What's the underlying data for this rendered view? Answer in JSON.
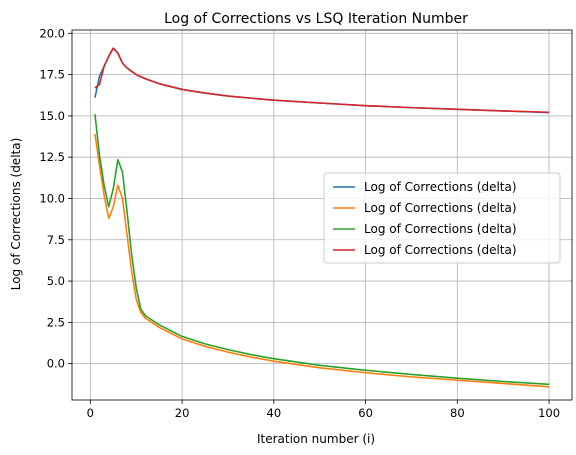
{
  "chart_data": {
    "type": "line",
    "title": "Log of Corrections vs LSQ Iteration Number",
    "xlabel": "Iteration number (i)",
    "ylabel": "Log of Corrections (delta)",
    "xlim": [
      -4,
      105
    ],
    "ylim": [
      -2.2,
      20.2
    ],
    "xticks": [
      0,
      20,
      40,
      60,
      80,
      100
    ],
    "yticks": [
      0.0,
      2.5,
      5.0,
      7.5,
      10.0,
      12.5,
      15.0,
      17.5,
      20.0
    ],
    "ytick_labels": [
      "0.0",
      "2.5",
      "5.0",
      "7.5",
      "10.0",
      "12.5",
      "15.0",
      "17.5",
      "20.0"
    ],
    "grid": true,
    "legend_position": "center-right",
    "series": [
      {
        "name": "Log of Corrections (delta)",
        "color": "#1f77b4",
        "points": [
          [
            1,
            16.1
          ],
          [
            2,
            17.4
          ],
          [
            3,
            18.0
          ],
          [
            4,
            18.6
          ],
          [
            5,
            19.1
          ],
          [
            6,
            18.8
          ],
          [
            7,
            18.2
          ],
          [
            8,
            17.9
          ],
          [
            9,
            17.7
          ],
          [
            10,
            17.5
          ],
          [
            12,
            17.25
          ],
          [
            15,
            16.95
          ],
          [
            20,
            16.6
          ],
          [
            25,
            16.38
          ],
          [
            30,
            16.2
          ],
          [
            40,
            15.95
          ],
          [
            50,
            15.78
          ],
          [
            60,
            15.62
          ],
          [
            70,
            15.5
          ],
          [
            80,
            15.4
          ],
          [
            90,
            15.3
          ],
          [
            100,
            15.2
          ]
        ]
      },
      {
        "name": "Log of Corrections (delta)",
        "color": "#ff7f0e",
        "points": [
          [
            1,
            13.9
          ],
          [
            2,
            12.0
          ],
          [
            3,
            10.2
          ],
          [
            4,
            8.8
          ],
          [
            5,
            9.5
          ],
          [
            6,
            10.8
          ],
          [
            7,
            10.0
          ],
          [
            8,
            7.8
          ],
          [
            9,
            5.6
          ],
          [
            10,
            3.9
          ],
          [
            11,
            3.1
          ],
          [
            12,
            2.75
          ],
          [
            15,
            2.2
          ],
          [
            20,
            1.5
          ],
          [
            25,
            1.05
          ],
          [
            30,
            0.7
          ],
          [
            35,
            0.4
          ],
          [
            40,
            0.15
          ],
          [
            50,
            -0.25
          ],
          [
            60,
            -0.55
          ],
          [
            70,
            -0.8
          ],
          [
            80,
            -1.0
          ],
          [
            90,
            -1.2
          ],
          [
            100,
            -1.4
          ]
        ]
      },
      {
        "name": "Log of Corrections (delta)",
        "color": "#2ca02c",
        "points": [
          [
            1,
            15.1
          ],
          [
            2,
            12.6
          ],
          [
            3,
            10.8
          ],
          [
            4,
            9.5
          ],
          [
            5,
            10.6
          ],
          [
            6,
            12.35
          ],
          [
            7,
            11.6
          ],
          [
            8,
            9.2
          ],
          [
            9,
            6.6
          ],
          [
            10,
            4.6
          ],
          [
            11,
            3.3
          ],
          [
            12,
            2.9
          ],
          [
            15,
            2.35
          ],
          [
            20,
            1.65
          ],
          [
            25,
            1.2
          ],
          [
            30,
            0.85
          ],
          [
            35,
            0.55
          ],
          [
            40,
            0.3
          ],
          [
            50,
            -0.1
          ],
          [
            60,
            -0.4
          ],
          [
            70,
            -0.65
          ],
          [
            80,
            -0.88
          ],
          [
            90,
            -1.08
          ],
          [
            100,
            -1.25
          ]
        ]
      },
      {
        "name": "Log of Corrections (delta)",
        "color": "#d62728",
        "points": [
          [
            1,
            16.7
          ],
          [
            2,
            16.9
          ],
          [
            3,
            18.0
          ],
          [
            4,
            18.6
          ],
          [
            5,
            19.1
          ],
          [
            6,
            18.8
          ],
          [
            7,
            18.2
          ],
          [
            8,
            17.9
          ],
          [
            9,
            17.7
          ],
          [
            10,
            17.5
          ],
          [
            12,
            17.25
          ],
          [
            15,
            16.95
          ],
          [
            20,
            16.6
          ],
          [
            25,
            16.38
          ],
          [
            30,
            16.2
          ],
          [
            40,
            15.95
          ],
          [
            50,
            15.78
          ],
          [
            60,
            15.62
          ],
          [
            70,
            15.5
          ],
          [
            80,
            15.4
          ],
          [
            90,
            15.3
          ],
          [
            100,
            15.22
          ]
        ]
      }
    ]
  }
}
